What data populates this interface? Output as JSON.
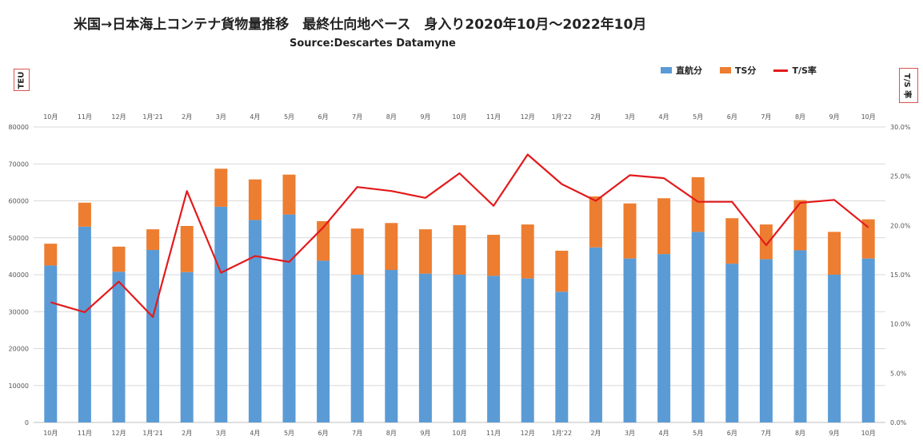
{
  "title": "米国→日本海上コンテナ貨物量推移　最終仕向地ベース　身入り2020年10月～2022年10月",
  "subtitle": "Source:Descartes Datamyne",
  "y_left_title": "TEU",
  "y_right_title": "T/S 率",
  "colors": {
    "direct": "#5b9bd5",
    "ts": "#ed7d31",
    "rate": "#e31a1c",
    "grid": "#d9d9d9",
    "axis_text": "#555555"
  },
  "chart_data": {
    "type": "bar",
    "stacked": true,
    "categories": [
      "10月",
      "11月",
      "12月",
      "1月'21",
      "2月",
      "3月",
      "4月",
      "5月",
      "6月",
      "7月",
      "8月",
      "9月",
      "10月",
      "11月",
      "12月",
      "1月'22",
      "2月",
      "3月",
      "4月",
      "5月",
      "6月",
      "7月",
      "8月",
      "9月",
      "10月"
    ],
    "top_categories": [
      "10月",
      "11月",
      "12月",
      "1月'21",
      "2月",
      "3月",
      "4月",
      "5月",
      "6月",
      "7月",
      "8月",
      "9月",
      "10月",
      "11月",
      "12月",
      "1月'22",
      "2月",
      "3月",
      "4月",
      "5月",
      "6月",
      "7月",
      "8月",
      "9月",
      "10月"
    ],
    "series": [
      {
        "name": "直航分",
        "kind": "bar",
        "axis": "left",
        "values": [
          42500,
          53000,
          40800,
          46700,
          40700,
          58400,
          54800,
          56300,
          43800,
          40000,
          41300,
          40300,
          40000,
          39700,
          39000,
          35400,
          47400,
          44400,
          45600,
          51600,
          43000,
          44200,
          46600,
          40000,
          44400
        ]
      },
      {
        "name": "TS分",
        "kind": "bar",
        "axis": "left",
        "values": [
          5900,
          6500,
          6800,
          5600,
          12500,
          10300,
          11000,
          10800,
          10700,
          12500,
          12700,
          12000,
          13400,
          11100,
          14600,
          11100,
          13800,
          14900,
          15100,
          14800,
          12300,
          9400,
          13600,
          11600,
          10600
        ]
      },
      {
        "name": "T/S率",
        "kind": "line",
        "axis": "right",
        "values": [
          12.2,
          11.2,
          14.3,
          10.7,
          23.5,
          15.2,
          16.9,
          16.3,
          19.8,
          23.9,
          23.5,
          22.8,
          25.3,
          22.0,
          27.2,
          24.2,
          22.5,
          25.1,
          24.8,
          22.4,
          22.4,
          18.0,
          22.3,
          22.6,
          19.8
        ]
      }
    ],
    "y_left": {
      "min": 0,
      "max": 80000,
      "ticks": [
        0,
        10000,
        20000,
        30000,
        40000,
        50000,
        60000,
        70000,
        80000
      ]
    },
    "y_right": {
      "min": 0,
      "max": 30,
      "ticks": [
        "0.0%",
        "5.0%",
        "10.0%",
        "15.0%",
        "20.0%",
        "25.0%",
        "30.0%"
      ]
    },
    "grid": true,
    "legend_position": "top-right"
  }
}
